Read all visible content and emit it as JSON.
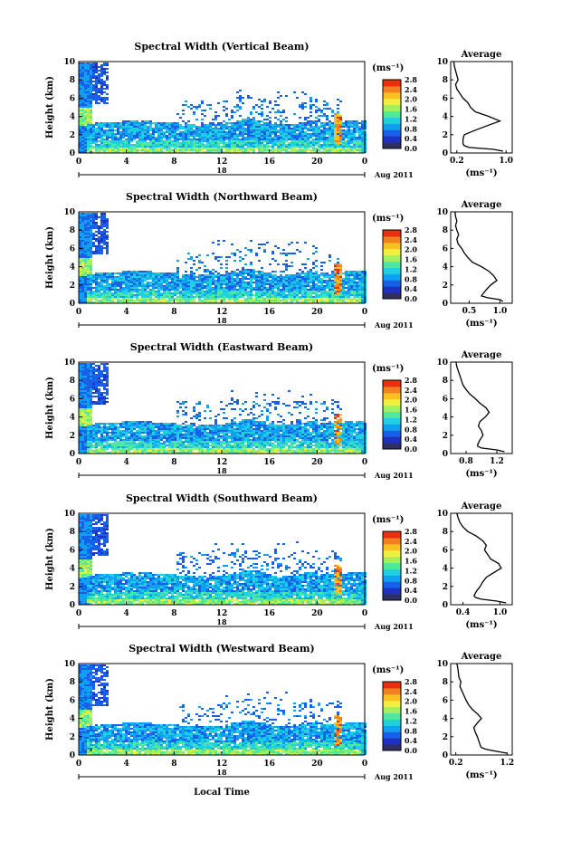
{
  "figure": {
    "x_axis_label": "Local Time",
    "date_label": "Aug 2011",
    "day_marker": "18",
    "average_title": "Average",
    "y_axis_label": "Height (km)",
    "unit_label": "(ms⁻¹)"
  },
  "colors": {
    "scale": [
      "#303060",
      "#2030c0",
      "#1860e8",
      "#10a0f0",
      "#20d0e0",
      "#50e8a0",
      "#a0f060",
      "#f0f040",
      "#f8c020",
      "#f08020",
      "#e83010"
    ]
  },
  "chart_data": [
    {
      "type": "heatmap",
      "title": "Spectral Width (Vertical Beam)",
      "xlabel": "Local Time",
      "ylabel": "Height (km)",
      "xlim": [
        0,
        24
      ],
      "ylim": [
        0,
        10
      ],
      "x_ticks": [
        "0",
        "4",
        "8",
        "12",
        "16",
        "20",
        "0"
      ],
      "y_ticks": [
        "0",
        "2",
        "4",
        "6",
        "8",
        "10"
      ],
      "colorbar": {
        "label": "(ms⁻¹)",
        "ticks": [
          "0.0",
          "0.4",
          "0.8",
          "1.2",
          "1.6",
          "2.0",
          "2.4",
          "2.8"
        ],
        "range": [
          0,
          2.8
        ]
      },
      "average": {
        "title": "Average",
        "xlabel": "(ms⁻¹)",
        "x_ticks": [
          "0.2",
          "1.0"
        ],
        "xlim": [
          0.1,
          1.1
        ],
        "height": [
          0.2,
          0.4,
          0.6,
          0.8,
          1.0,
          1.5,
          2.0,
          2.5,
          3.0,
          3.5,
          4.0,
          4.5,
          5.0,
          5.5,
          6.0,
          6.5,
          7.0,
          7.5,
          8.0,
          8.5,
          9.0,
          9.5,
          10.0
        ],
        "value": [
          0.95,
          0.8,
          0.4,
          0.32,
          0.3,
          0.3,
          0.32,
          0.5,
          0.7,
          0.9,
          0.72,
          0.5,
          0.42,
          0.38,
          0.3,
          0.25,
          0.2,
          0.18,
          0.22,
          0.2,
          0.18,
          0.16,
          0.15
        ]
      }
    },
    {
      "type": "heatmap",
      "title": "Spectral Width (Northward Beam)",
      "xlabel": "Local Time",
      "ylabel": "Height (km)",
      "xlim": [
        0,
        24
      ],
      "ylim": [
        0,
        10
      ],
      "x_ticks": [
        "0",
        "4",
        "8",
        "12",
        "16",
        "20",
        "0"
      ],
      "y_ticks": [
        "0",
        "2",
        "4",
        "6",
        "8",
        "10"
      ],
      "colorbar": {
        "label": "(ms⁻¹)",
        "ticks": [
          "0.0",
          "0.4",
          "0.8",
          "1.2",
          "1.6",
          "2.0",
          "2.4",
          "2.8"
        ],
        "range": [
          0,
          2.8
        ]
      },
      "average": {
        "title": "Average",
        "xlabel": "(ms⁻¹)",
        "x_ticks": [
          "0.5",
          "1.0"
        ],
        "xlim": [
          0.2,
          1.2
        ],
        "height": [
          0.2,
          0.4,
          0.6,
          0.8,
          1.0,
          1.5,
          2.0,
          2.5,
          3.0,
          3.5,
          4.0,
          4.5,
          5.0,
          5.5,
          6.0,
          6.5,
          7.0,
          7.5,
          8.0,
          8.5,
          9.0,
          9.5,
          10.0
        ],
        "value": [
          1.05,
          1.0,
          0.8,
          0.7,
          0.72,
          0.78,
          0.85,
          0.95,
          0.9,
          0.82,
          0.7,
          0.55,
          0.48,
          0.42,
          0.38,
          0.32,
          0.3,
          0.33,
          0.3,
          0.28,
          0.3,
          0.28,
          0.27
        ]
      }
    },
    {
      "type": "heatmap",
      "title": "Spectral Width (Eastward Beam)",
      "xlabel": "Local Time",
      "ylabel": "Height (km)",
      "xlim": [
        0,
        24
      ],
      "ylim": [
        0,
        10
      ],
      "x_ticks": [
        "0",
        "4",
        "8",
        "12",
        "16",
        "20",
        "0"
      ],
      "y_ticks": [
        "0",
        "2",
        "4",
        "6",
        "8",
        "10"
      ],
      "colorbar": {
        "label": "(ms⁻¹)",
        "ticks": [
          "0.0",
          "0.4",
          "0.8",
          "1.2",
          "1.6",
          "2.0",
          "2.4",
          "2.8"
        ],
        "range": [
          0,
          2.8
        ]
      },
      "average": {
        "title": "Average",
        "xlabel": "(ms⁻¹)",
        "x_ticks": [
          "0.8",
          "1.2"
        ],
        "xlim": [
          0.6,
          1.4
        ],
        "height": [
          0.2,
          0.4,
          0.6,
          0.8,
          1.0,
          1.5,
          2.0,
          2.5,
          3.0,
          3.5,
          4.0,
          4.5,
          5.0,
          5.5,
          6.0,
          6.5,
          7.0,
          7.5,
          8.0,
          8.5,
          9.0,
          9.5,
          10.0
        ],
        "value": [
          1.3,
          1.2,
          1.0,
          0.95,
          0.95,
          0.98,
          1.02,
          1.0,
          0.96,
          0.98,
          1.05,
          1.1,
          1.06,
          0.98,
          0.92,
          0.85,
          0.8,
          0.76,
          0.74,
          0.72,
          0.7,
          0.68,
          0.67
        ]
      }
    },
    {
      "type": "heatmap",
      "title": "Spectral Width (Southward Beam)",
      "xlabel": "Local Time",
      "ylabel": "Height (km)",
      "xlim": [
        0,
        24
      ],
      "ylim": [
        0,
        10
      ],
      "x_ticks": [
        "0",
        "4",
        "8",
        "12",
        "16",
        "20",
        "0"
      ],
      "y_ticks": [
        "0",
        "2",
        "4",
        "6",
        "8",
        "10"
      ],
      "colorbar": {
        "label": "(ms⁻¹)",
        "ticks": [
          "0.0",
          "0.4",
          "0.8",
          "1.2",
          "1.6",
          "2.0",
          "2.4",
          "2.8"
        ],
        "range": [
          0,
          2.8
        ]
      },
      "average": {
        "title": "Average",
        "xlabel": "(ms⁻¹)",
        "x_ticks": [
          "0.4",
          "1.0"
        ],
        "xlim": [
          0.2,
          1.2
        ],
        "height": [
          0.2,
          0.4,
          0.6,
          0.8,
          1.0,
          1.5,
          2.0,
          2.5,
          3.0,
          3.5,
          4.0,
          4.5,
          5.0,
          5.5,
          6.0,
          6.5,
          7.0,
          7.5,
          8.0,
          8.5,
          9.0,
          9.5,
          10.0
        ],
        "value": [
          1.1,
          0.95,
          0.7,
          0.6,
          0.58,
          0.62,
          0.68,
          0.72,
          0.78,
          0.9,
          1.02,
          0.98,
          0.85,
          0.8,
          0.75,
          0.78,
          0.72,
          0.62,
          0.48,
          0.4,
          0.35,
          0.32,
          0.3
        ]
      }
    },
    {
      "type": "heatmap",
      "title": "Spectral Width (Westward Beam)",
      "xlabel": "Local Time",
      "ylabel": "Height (km)",
      "xlim": [
        0,
        24
      ],
      "ylim": [
        0,
        10
      ],
      "x_ticks": [
        "0",
        "4",
        "8",
        "12",
        "16",
        "20",
        "0"
      ],
      "y_ticks": [
        "0",
        "2",
        "4",
        "6",
        "8",
        "10"
      ],
      "colorbar": {
        "label": "(ms⁻¹)",
        "ticks": [
          "0.0",
          "0.4",
          "0.8",
          "1.2",
          "1.6",
          "2.0",
          "2.4",
          "2.8"
        ],
        "range": [
          0,
          2.8
        ]
      },
      "average": {
        "title": "Average",
        "xlabel": "(ms⁻¹)",
        "x_ticks": [
          "0.2",
          "1.2"
        ],
        "xlim": [
          0.1,
          1.3
        ],
        "height": [
          0.2,
          0.4,
          0.6,
          0.8,
          1.0,
          1.5,
          2.0,
          2.5,
          3.0,
          3.5,
          4.0,
          4.5,
          5.0,
          5.5,
          6.0,
          6.5,
          7.0,
          7.5,
          8.0,
          8.5,
          9.0,
          9.5,
          10.0
        ],
        "value": [
          1.2,
          1.0,
          0.8,
          0.7,
          0.68,
          0.65,
          0.62,
          0.58,
          0.55,
          0.62,
          0.7,
          0.62,
          0.52,
          0.45,
          0.4,
          0.36,
          0.32,
          0.28,
          0.3,
          0.26,
          0.25,
          0.24,
          0.22
        ]
      }
    }
  ]
}
